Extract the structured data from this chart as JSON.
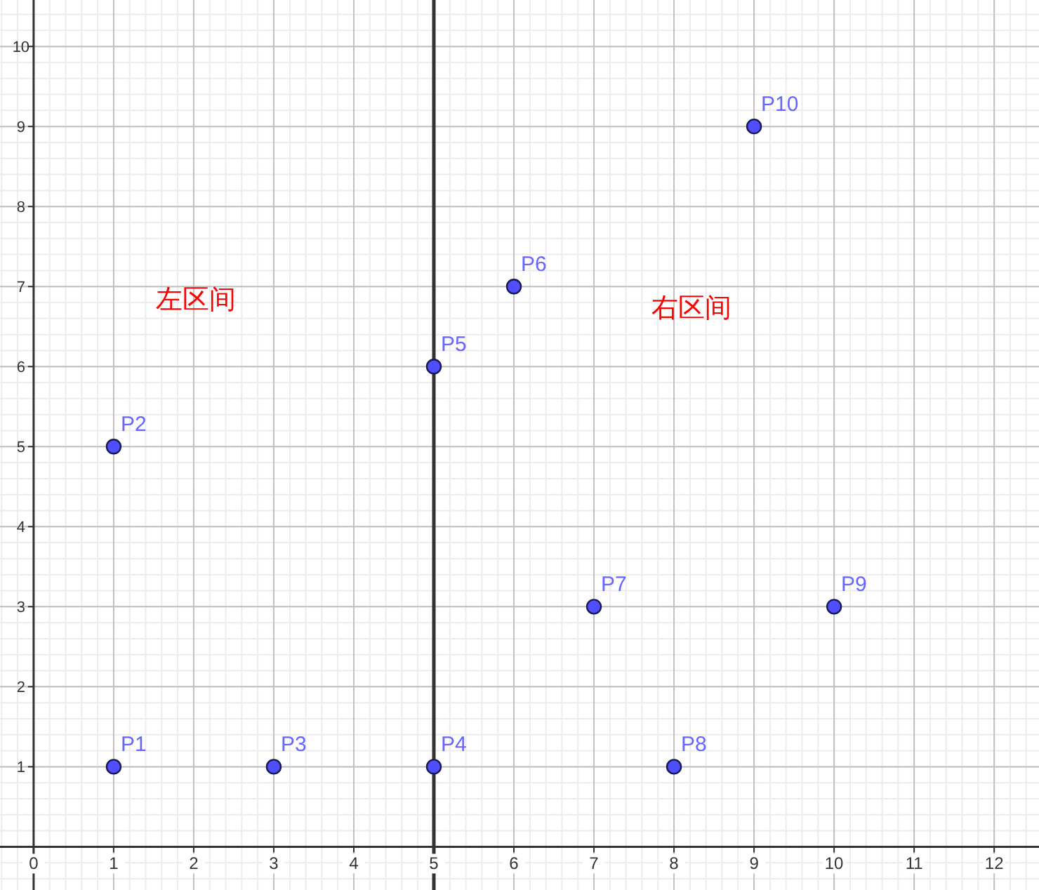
{
  "chart_data": {
    "type": "scatter",
    "x": [
      1,
      1,
      3,
      5,
      5,
      6,
      7,
      8,
      10,
      9
    ],
    "series": [
      {
        "color": "#4f4fff",
        "values": [
          1,
          5,
          1,
          1,
          6,
          7,
          3,
          1,
          3,
          9
        ]
      }
    ],
    "marker": "circle",
    "xlim": [
      -0.42,
      12.56
    ],
    "ylim": [
      -0.54,
      10.58
    ],
    "xticks": [
      0,
      1,
      2,
      3,
      4,
      5,
      6,
      7,
      8,
      9,
      10,
      11,
      12
    ],
    "yticks": [
      1,
      2,
      3,
      4,
      5,
      6,
      7,
      8,
      9,
      10
    ],
    "grid": true,
    "ref_lines": [
      {
        "axis": "x",
        "value": 5,
        "color": "#333333"
      }
    ],
    "annotations": [
      {
        "text": "P1",
        "x": 1,
        "y": 1
      },
      {
        "text": "P2",
        "x": 1,
        "y": 5
      },
      {
        "text": "P3",
        "x": 3,
        "y": 1
      },
      {
        "text": "P4",
        "x": 5,
        "y": 1
      },
      {
        "text": "P5",
        "x": 5,
        "y": 6
      },
      {
        "text": "P6",
        "x": 6,
        "y": 7
      },
      {
        "text": "P7",
        "x": 7,
        "y": 3
      },
      {
        "text": "P8",
        "x": 8,
        "y": 1
      },
      {
        "text": "P9",
        "x": 10,
        "y": 3
      },
      {
        "text": "P10",
        "x": 9,
        "y": 9
      },
      "左区间",
      "右区间"
    ]
  }
}
